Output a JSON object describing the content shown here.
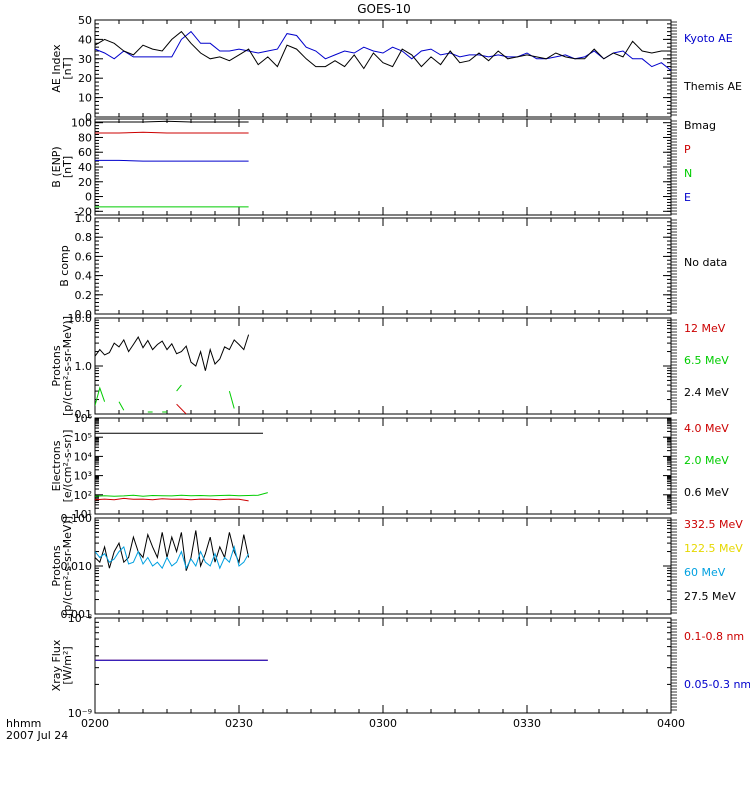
{
  "title": "GOES-10",
  "footer": {
    "line1": "hhmm",
    "line2": "2007 Jul 24"
  },
  "x_ticks": [
    "0200",
    "0230",
    "0300",
    "0330",
    "0400"
  ],
  "chart_data": [
    {
      "type": "line",
      "name": "ae-index",
      "ylabel": "AE Index",
      "yunits": "[nT]",
      "ylim": [
        0,
        50
      ],
      "yticks": [
        "0",
        "10",
        "20",
        "30",
        "40",
        "50"
      ],
      "legend": [
        {
          "label": "Kyoto AE",
          "color": "#0000cc"
        },
        {
          "label": "Themis AE",
          "color": "#000000"
        }
      ],
      "x": [
        0,
        2,
        4,
        6,
        8,
        10,
        12,
        14,
        16,
        18,
        20,
        22,
        24,
        26,
        28,
        30,
        32,
        34,
        36,
        38,
        40,
        42,
        44,
        46,
        48,
        50,
        52,
        54,
        56,
        58,
        60,
        62,
        64,
        66,
        68,
        70,
        72,
        74,
        76,
        78,
        80,
        82,
        84,
        86,
        88,
        90,
        92,
        94,
        96,
        98,
        100,
        102,
        104,
        106,
        108,
        110,
        112,
        114,
        116,
        118,
        120
      ],
      "series": [
        {
          "name": "Kyoto AE",
          "color": "#0000cc",
          "values": [
            35,
            33,
            30,
            34,
            31,
            31,
            31,
            31,
            31,
            40,
            44,
            38,
            38,
            34,
            34,
            35,
            34,
            33,
            34,
            35,
            43,
            42,
            36,
            34,
            30,
            32,
            34,
            33,
            36,
            34,
            33,
            36,
            34,
            30,
            34,
            35,
            32,
            33,
            31,
            32,
            32,
            31,
            32,
            31,
            31,
            33,
            30,
            30,
            31,
            32,
            30,
            31,
            34,
            30,
            33,
            34,
            30,
            30,
            26,
            28,
            24
          ]
        },
        {
          "name": "Themis AE",
          "color": "#000000",
          "values": [
            37,
            40,
            38,
            34,
            32,
            37,
            35,
            34,
            40,
            44,
            38,
            33,
            30,
            31,
            29,
            32,
            35,
            27,
            31,
            26,
            37,
            35,
            30,
            26,
            26,
            29,
            26,
            32,
            25,
            33,
            28,
            26,
            35,
            32,
            26,
            31,
            27,
            34,
            28,
            29,
            33,
            29,
            34,
            30,
            31,
            32,
            31,
            30,
            33,
            31,
            30,
            30,
            35,
            30,
            33,
            31,
            39,
            34,
            33,
            34,
            34
          ]
        }
      ]
    },
    {
      "type": "line",
      "name": "b-enp",
      "ylabel": "B (ENP)",
      "yunits": "[nT]",
      "ylim": [
        -25,
        105
      ],
      "yticks": [
        "-20",
        "0",
        "20",
        "40",
        "60",
        "80",
        "100"
      ],
      "legend": [
        {
          "label": "Bmag",
          "color": "#000000"
        },
        {
          "label": "P",
          "color": "#cc0000"
        },
        {
          "label": "N",
          "color": "#00cc00"
        },
        {
          "label": "E",
          "color": "#0000cc"
        }
      ],
      "x": [
        0,
        5,
        10,
        15,
        20,
        25,
        30,
        32
      ],
      "series": [
        {
          "name": "Bmag",
          "color": "#000000",
          "values": [
            101,
            101,
            101,
            102,
            101,
            101,
            101,
            101
          ]
        },
        {
          "name": "P",
          "color": "#cc0000",
          "values": [
            86,
            86,
            87,
            86,
            86,
            86,
            86,
            86
          ]
        },
        {
          "name": "N",
          "color": "#00cc00",
          "values": [
            -14,
            -14,
            -14,
            -14,
            -14,
            -14,
            -14,
            -14
          ]
        },
        {
          "name": "E",
          "color": "#0000cc",
          "values": [
            49,
            49,
            48,
            48,
            48,
            48,
            48,
            48
          ]
        }
      ]
    },
    {
      "type": "line",
      "name": "b-comp",
      "ylabel": "B comp",
      "ylim": [
        0,
        1.0
      ],
      "yticks": [
        "0.0",
        "0.2",
        "0.4",
        "0.6",
        "0.8",
        "1.0"
      ],
      "legend": [
        {
          "label": "No data",
          "color": "#000000"
        }
      ],
      "series": []
    },
    {
      "type": "line",
      "name": "protons-low",
      "ylabel": "Protons",
      "yunits": "[p/(cm²-s-sr-MeV)]",
      "log": true,
      "ylim": [
        0.1,
        10.0
      ],
      "yticks": [
        "0.1",
        "1.0",
        "10.0"
      ],
      "legend": [
        {
          "label": "12 MeV",
          "color": "#cc0000"
        },
        {
          "label": "6.5 MeV",
          "color": "#00cc00"
        },
        {
          "label": "2.4 MeV",
          "color": "#000000"
        }
      ],
      "x": [
        0,
        1,
        2,
        3,
        4,
        5,
        6,
        7,
        8,
        9,
        10,
        11,
        12,
        13,
        14,
        15,
        16,
        17,
        18,
        19,
        20,
        21,
        22,
        23,
        24,
        25,
        26,
        27,
        28,
        29,
        30,
        31,
        32
      ],
      "series": [
        {
          "name": "2.4 MeV",
          "color": "#000000",
          "values": [
            1.6,
            2.2,
            1.7,
            1.9,
            3.0,
            2.5,
            3.5,
            2.0,
            2.8,
            4.0,
            2.4,
            3.4,
            2.2,
            2.8,
            3.3,
            2.2,
            2.9,
            1.8,
            2.0,
            2.6,
            1.2,
            1.0,
            2.0,
            0.8,
            2.2,
            1.1,
            1.4,
            2.5,
            2.2,
            3.5,
            2.8,
            2.2,
            4.5
          ]
        },
        {
          "name": "6.5 MeV",
          "color": "#00cc00",
          "segments": [
            [
              [
                0,
                0.15
              ],
              [
                1,
                0.35
              ],
              [
                2,
                0.18
              ]
            ],
            [
              [
                5,
                0.18
              ],
              [
                6,
                0.12
              ]
            ],
            [
              [
                11,
                0.11
              ],
              [
                12,
                0.11
              ]
            ],
            [
              [
                14,
                0.11
              ],
              [
                15,
                0.11
              ]
            ],
            [
              [
                17,
                0.3
              ],
              [
                18,
                0.4
              ]
            ],
            [
              [
                28,
                0.3
              ],
              [
                29,
                0.13
              ]
            ]
          ]
        },
        {
          "name": "12 MeV",
          "color": "#cc0000",
          "segments": [
            [
              [
                17,
                0.16
              ],
              [
                19,
                0.1
              ]
            ]
          ]
        }
      ]
    },
    {
      "type": "line",
      "name": "electrons",
      "ylabel": "Electrons",
      "yunits": "[e/(cm²-s-sr)]",
      "log": true,
      "ylim": [
        10,
        1000000
      ],
      "yticks": [
        "10¹",
        "10²",
        "10³",
        "10⁴",
        "10⁵",
        "10⁶"
      ],
      "legend": [
        {
          "label": "4.0 MeV",
          "color": "#cc0000"
        },
        {
          "label": "2.0 MeV",
          "color": "#00cc00"
        },
        {
          "label": "0.6 MeV",
          "color": "#000000"
        }
      ],
      "x": [
        0,
        2,
        4,
        6,
        8,
        10,
        12,
        14,
        16,
        18,
        20,
        22,
        24,
        26,
        28,
        30,
        32,
        34,
        36
      ],
      "series": [
        {
          "name": "0.6 MeV",
          "color": "#000000",
          "x": [
            0,
            35
          ],
          "values": [
            160000,
            160000
          ]
        },
        {
          "name": "2.0 MeV",
          "color": "#00cc00",
          "values": [
            85,
            90,
            85,
            88,
            95,
            85,
            92,
            90,
            88,
            95,
            90,
            92,
            88,
            92,
            95,
            90,
            92,
            95,
            130
          ]
        },
        {
          "name": "4.0 MeV",
          "color": "#cc0000",
          "values": [
            55,
            60,
            55,
            65,
            58,
            60,
            55,
            62,
            58,
            60,
            55,
            60,
            58,
            55,
            60,
            58,
            48,
            null,
            null
          ]
        }
      ]
    },
    {
      "type": "line",
      "name": "protons-high",
      "ylabel": "Protons",
      "yunits": "[p/(cm²-s-sr-MeV)]",
      "log": true,
      "ylim": [
        0.001,
        0.1
      ],
      "yticks": [
        "0.001",
        "0.010",
        "0.100"
      ],
      "legend": [
        {
          "label": "332.5 MeV",
          "color": "#cc0000"
        },
        {
          "label": "122.5 MeV",
          "color": "#e6d800"
        },
        {
          "label": "60 MeV",
          "color": "#00a0e0"
        },
        {
          "label": "27.5 MeV",
          "color": "#000000"
        }
      ],
      "x": [
        0,
        1,
        2,
        3,
        4,
        5,
        6,
        7,
        8,
        9,
        10,
        11,
        12,
        13,
        14,
        15,
        16,
        17,
        18,
        19,
        20,
        21,
        22,
        23,
        24,
        25,
        26,
        27,
        28,
        29,
        30,
        31,
        32
      ],
      "series": [
        {
          "name": "27.5 MeV",
          "color": "#000000",
          "values": [
            0.015,
            0.012,
            0.025,
            0.009,
            0.02,
            0.03,
            0.012,
            0.015,
            0.04,
            0.02,
            0.015,
            0.045,
            0.025,
            0.015,
            0.05,
            0.015,
            0.04,
            0.02,
            0.05,
            0.008,
            0.015,
            0.055,
            0.01,
            0.018,
            0.04,
            0.012,
            0.025,
            0.015,
            0.05,
            0.02,
            0.012,
            0.045,
            0.015
          ]
        },
        {
          "name": "60 MeV",
          "color": "#00a0e0",
          "values": [
            0.02,
            0.015,
            0.018,
            0.012,
            0.014,
            0.02,
            0.025,
            0.011,
            0.012,
            0.02,
            0.011,
            0.015,
            0.01,
            0.012,
            0.009,
            0.015,
            0.01,
            0.012,
            0.02,
            0.009,
            0.014,
            0.01,
            0.02,
            0.012,
            0.01,
            0.018,
            0.009,
            0.015,
            0.012,
            0.025,
            0.01,
            0.012,
            0.018
          ]
        }
      ]
    },
    {
      "type": "line",
      "name": "xray-flux",
      "ylabel": "Xray Flux",
      "yunits": "[W/m²]",
      "log": true,
      "ylim": [
        1e-09,
        1e-08
      ],
      "yticks": [
        "10⁻⁹",
        "10⁻⁸"
      ],
      "legend": [
        {
          "label": "0.1-0.8 nm",
          "color": "#cc0000"
        },
        {
          "label": "0.05-0.3 nm",
          "color": "#0000cc"
        }
      ],
      "series": [
        {
          "name": "0.1-0.8 nm",
          "color": "#cc0000",
          "x": [
            0,
            36
          ],
          "values": [
            3.6e-09,
            3.6e-09
          ]
        },
        {
          "name": "0.05-0.3 nm",
          "color": "#0000cc",
          "x": [
            0,
            36
          ],
          "values": [
            3.6e-09,
            3.6e-09
          ]
        }
      ]
    }
  ]
}
